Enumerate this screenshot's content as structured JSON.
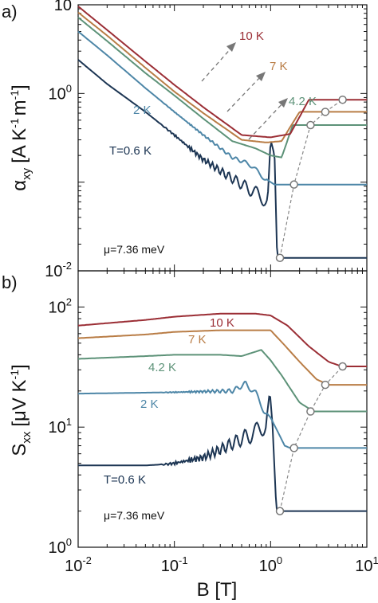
{
  "chart_data": [
    {
      "panel": "a)",
      "type": "line",
      "ylabel_main": "α",
      "ylabel_sub": "xy",
      "ylabel_unit": "[A K",
      "ylabel_unit_exp1": "-1",
      "ylabel_unit_mid": "m",
      "ylabel_unit_exp2": "-1",
      "ylabel_unit_end": "]",
      "xscale": "log",
      "yscale": "log",
      "xlim": [
        0.01,
        10
      ],
      "ylim": [
        0.01,
        10
      ],
      "y_ticks": [
        {
          "v": 10,
          "label": "10"
        },
        {
          "v": 1,
          "label": "10",
          "exp": "0"
        },
        {
          "v": 0.01,
          "label": "10",
          "exp": "-2"
        }
      ],
      "annotation": "μ=7.36 meV",
      "series": [
        {
          "name": "T=0.6 K",
          "color": "#1c3553",
          "plateau": 0.014,
          "points": [
            [
              0.01,
              2.4
            ],
            [
              0.02,
              1.28
            ],
            [
              0.05,
              0.62
            ],
            [
              0.1,
              0.34
            ],
            [
              0.2,
              0.18
            ],
            [
              0.35,
              0.12
            ],
            [
              0.5,
              0.095
            ],
            [
              0.7,
              0.075
            ],
            [
              0.93,
              0.062
            ],
            [
              1.0,
              0.3
            ],
            [
              1.1,
              0.2
            ],
            [
              1.17,
              0.014
            ],
            [
              10,
              0.014
            ]
          ]
        },
        {
          "name": "2 K",
          "color": "#4d86a7",
          "plateau": 0.094,
          "points": [
            [
              0.01,
              5.0
            ],
            [
              0.02,
              2.7
            ],
            [
              0.05,
              1.15
            ],
            [
              0.1,
              0.62
            ],
            [
              0.2,
              0.34
            ],
            [
              0.4,
              0.19
            ],
            [
              0.6,
              0.16
            ],
            [
              0.8,
              0.12
            ],
            [
              1.0,
              0.1
            ],
            [
              1.1,
              0.094
            ],
            [
              10,
              0.094
            ]
          ]
        },
        {
          "name": "4.2 K",
          "color": "#5d9278",
          "plateau": 0.44,
          "points": [
            [
              0.01,
              7.2
            ],
            [
              0.02,
              3.9
            ],
            [
              0.05,
              1.7
            ],
            [
              0.1,
              0.95
            ],
            [
              0.2,
              0.52
            ],
            [
              0.4,
              0.29
            ],
            [
              0.7,
              0.24
            ],
            [
              1.0,
              0.2
            ],
            [
              1.3,
              0.19
            ],
            [
              1.7,
              0.44
            ],
            [
              10,
              0.44
            ]
          ]
        },
        {
          "name": "7 K",
          "color": "#b97d46",
          "plateau": 0.62,
          "points": [
            [
              0.01,
              8.2
            ],
            [
              0.02,
              4.5
            ],
            [
              0.05,
              1.95
            ],
            [
              0.1,
              1.05
            ],
            [
              0.2,
              0.6
            ],
            [
              0.5,
              0.3
            ],
            [
              0.9,
              0.28
            ],
            [
              1.3,
              0.29
            ],
            [
              2.0,
              0.62
            ],
            [
              10,
              0.62
            ]
          ]
        },
        {
          "name": "10 K",
          "color": "#9b2e35",
          "plateau": 0.85,
          "points": [
            [
              0.01,
              9.6
            ],
            [
              0.02,
              5.2
            ],
            [
              0.05,
              2.3
            ],
            [
              0.1,
              1.25
            ],
            [
              0.2,
              0.7
            ],
            [
              0.5,
              0.34
            ],
            [
              1.0,
              0.32
            ],
            [
              1.6,
              0.35
            ],
            [
              2.5,
              0.85
            ],
            [
              10,
              0.85
            ]
          ]
        }
      ],
      "series_labels": [
        "T=0.6 K",
        "2 K",
        "4.2 K",
        "7 K",
        "10 K"
      ],
      "circle_points": [
        [
          1.25,
          0.014
        ],
        [
          1.75,
          0.094
        ],
        [
          2.6,
          0.44
        ],
        [
          3.7,
          0.62
        ],
        [
          5.6,
          0.85
        ]
      ]
    },
    {
      "panel": "b)",
      "type": "line",
      "ylabel_main": "S",
      "ylabel_sub": "xx",
      "ylabel_unit": "[μV K",
      "ylabel_unit_exp1": "-1",
      "ylabel_unit_end": "]",
      "xlabel": "B [T]",
      "xscale": "log",
      "yscale": "log",
      "xlim": [
        0.01,
        10
      ],
      "ylim": [
        1,
        200
      ],
      "y_ticks": [
        {
          "v": 100,
          "label": "10",
          "exp": "2"
        },
        {
          "v": 10,
          "label": "10",
          "exp": "1"
        },
        {
          "v": 1,
          "label": "10",
          "exp": "0"
        }
      ],
      "x_ticks": [
        {
          "v": 0.01,
          "label": "10",
          "exp": "-2"
        },
        {
          "v": 0.1,
          "label": "10",
          "exp": "-1"
        },
        {
          "v": 1,
          "label": "10",
          "exp": "0"
        },
        {
          "v": 10,
          "label": "10",
          "exp": "1"
        }
      ],
      "annotation": "μ=7.36 meV",
      "series": [
        {
          "name": "T=0.6 K",
          "color": "#1c3553",
          "plateau": 2.0,
          "points": [
            [
              0.01,
              4.8
            ],
            [
              0.05,
              4.8
            ],
            [
              0.08,
              4.9
            ],
            [
              0.1,
              5.0
            ],
            [
              0.2,
              5.6
            ],
            [
              0.3,
              6.5
            ],
            [
              0.5,
              8.0
            ],
            [
              0.7,
              9.0
            ],
            [
              0.9,
              11
            ],
            [
              0.98,
              20
            ],
            [
              1.05,
              10
            ],
            [
              1.15,
              2.0
            ],
            [
              10,
              2.0
            ]
          ]
        },
        {
          "name": "2 K",
          "color": "#4d86a7",
          "plateau": 6.7,
          "points": [
            [
              0.01,
              19
            ],
            [
              0.1,
              19.5
            ],
            [
              0.2,
              19.8
            ],
            [
              0.4,
              20
            ],
            [
              0.55,
              23
            ],
            [
              0.7,
              19
            ],
            [
              0.85,
              14
            ],
            [
              1.0,
              12
            ],
            [
              1.2,
              9
            ],
            [
              1.4,
              7
            ],
            [
              1.6,
              6.7
            ],
            [
              10,
              6.7
            ]
          ]
        },
        {
          "name": "4.2 K",
          "color": "#5d9278",
          "plateau": 13.5,
          "points": [
            [
              0.01,
              37
            ],
            [
              0.05,
              39
            ],
            [
              0.1,
              40
            ],
            [
              0.3,
              40
            ],
            [
              0.5,
              39
            ],
            [
              0.8,
              44
            ],
            [
              1.0,
              36
            ],
            [
              1.3,
              27
            ],
            [
              2.0,
              16
            ],
            [
              2.8,
              13.5
            ],
            [
              10,
              13.5
            ]
          ]
        },
        {
          "name": "7 K",
          "color": "#b97d46",
          "plateau": 22.5,
          "points": [
            [
              0.01,
              55
            ],
            [
              0.05,
              59
            ],
            [
              0.1,
              62
            ],
            [
              0.3,
              64
            ],
            [
              0.6,
              64
            ],
            [
              1.0,
              64
            ],
            [
              1.4,
              48
            ],
            [
              2.0,
              35
            ],
            [
              3.0,
              25
            ],
            [
              4.0,
              22.5
            ],
            [
              10,
              22.5
            ]
          ]
        },
        {
          "name": "10 K",
          "color": "#9b2e35",
          "plateau": 32,
          "points": [
            [
              0.01,
              70
            ],
            [
              0.05,
              78
            ],
            [
              0.1,
              83
            ],
            [
              0.3,
              88
            ],
            [
              0.7,
              88
            ],
            [
              1.0,
              85
            ],
            [
              1.5,
              70
            ],
            [
              2.5,
              47
            ],
            [
              4.0,
              35
            ],
            [
              5.5,
              32
            ],
            [
              10,
              32
            ]
          ]
        }
      ],
      "series_labels": [
        "T=0.6 K",
        "2 K",
        "4.2 K",
        "7 K",
        "10 K"
      ],
      "circle_points": [
        [
          1.25,
          2.0
        ],
        [
          1.75,
          6.7
        ],
        [
          2.6,
          13.5
        ],
        [
          3.7,
          22.5
        ],
        [
          5.6,
          32
        ]
      ]
    }
  ]
}
